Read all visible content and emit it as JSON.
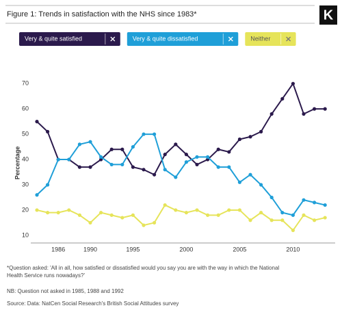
{
  "logo": "K",
  "footnotes": [
    "*Question asked: 'All in all, how satisfied or dissatisfied would you say you are with the way in which the National Health Service runs nowadays?'",
    "NB: Question not asked in 1985, 1988 and 1992",
    "Source: Data: NatCen Social Research's British Social Attitudes survey"
  ],
  "chart_data": {
    "type": "line",
    "title": "Figure 1: Trends in satisfaction with the NHS since 1983*",
    "y_label": "Percentage",
    "categories": [
      null,
      null,
      "1986",
      null,
      null,
      "1990",
      null,
      null,
      null,
      "1995",
      null,
      null,
      null,
      null,
      "2000",
      null,
      null,
      null,
      null,
      "2005",
      null,
      null,
      null,
      null,
      "2010",
      null,
      null,
      null
    ],
    "series": [
      {
        "name": "Very & quite satisfied",
        "color": "#2b1a4c",
        "values": [
          55,
          51,
          40,
          40,
          37,
          37,
          40,
          44,
          44,
          37,
          36,
          34,
          42,
          46,
          42,
          38,
          40,
          44,
          43,
          48,
          49,
          51,
          58,
          64,
          70,
          58,
          60,
          60
        ]
      },
      {
        "name": "Very & quite dissatisfied",
        "color": "#1f9fd8",
        "values": [
          26,
          30,
          40,
          40,
          46,
          47,
          41,
          38,
          38,
          45,
          50,
          50,
          36,
          33,
          39,
          41,
          41,
          37,
          37,
          31,
          34,
          30,
          25,
          19,
          18,
          24,
          23,
          22
        ]
      },
      {
        "name": "Neither",
        "color": "#e6e45a",
        "values": [
          20,
          19,
          19,
          20,
          18,
          15,
          19,
          18,
          17,
          18,
          14,
          15,
          22,
          20,
          19,
          20,
          18,
          18,
          20,
          20,
          16,
          19,
          16,
          16,
          12,
          18,
          16,
          17
        ]
      }
    ],
    "ylim": [
      7,
      76
    ],
    "yticks": [
      10,
      20,
      30,
      40,
      50,
      60,
      70
    ],
    "grid": false
  }
}
